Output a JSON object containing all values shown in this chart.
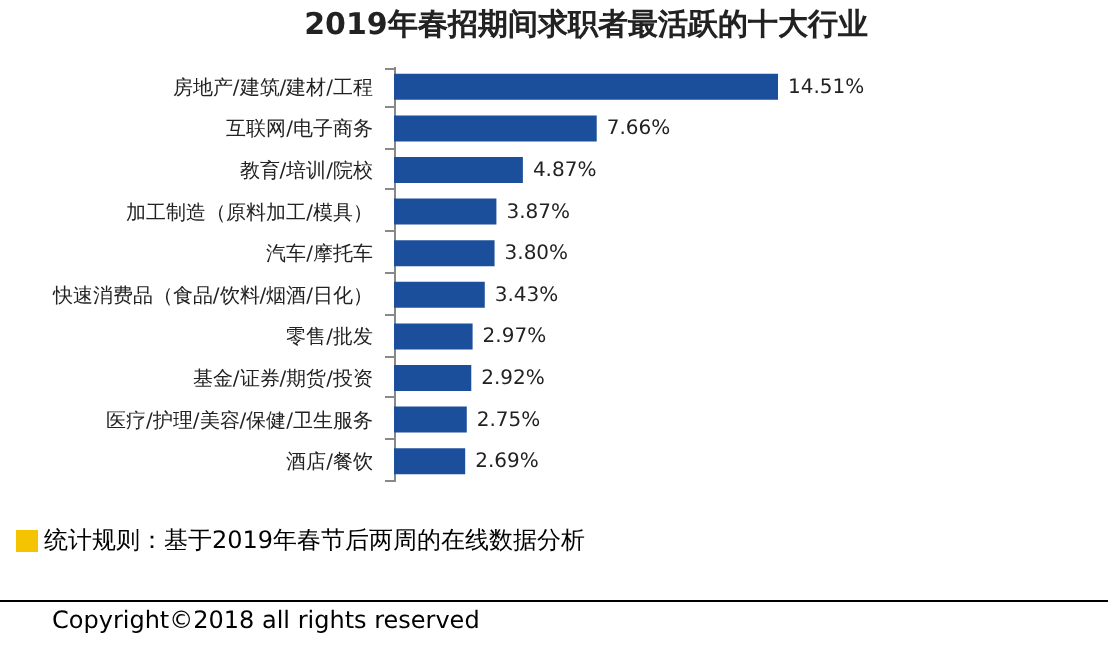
{
  "chart_data": {
    "type": "bar",
    "orientation": "horizontal",
    "title": "2019年春招期间求职者最活跃的十大行业",
    "categories": [
      "房地产/建筑/建材/工程",
      "互联网/电子商务",
      "教育/培训/院校",
      "加工制造（原料加工/模具）",
      "汽车/摩托车",
      "快速消费品（食品/饮料/烟酒/日化）",
      "零售/批发",
      "基金/证券/期货/投资",
      "医疗/护理/美容/保健/卫生服务",
      "酒店/餐饮"
    ],
    "values": [
      14.51,
      7.66,
      4.87,
      3.87,
      3.8,
      3.43,
      2.97,
      2.92,
      2.75,
      2.69
    ],
    "value_labels": [
      "14.51%",
      "7.66%",
      "4.87%",
      "3.87%",
      "3.80%",
      "3.43%",
      "2.97%",
      "2.92%",
      "2.75%",
      "2.69%"
    ],
    "color": "#1b4f9c",
    "annotations": [
      "统计规则：基于2019年春节后两周的在线数据分析",
      "Copyright©2018 all rights reserved"
    ]
  }
}
